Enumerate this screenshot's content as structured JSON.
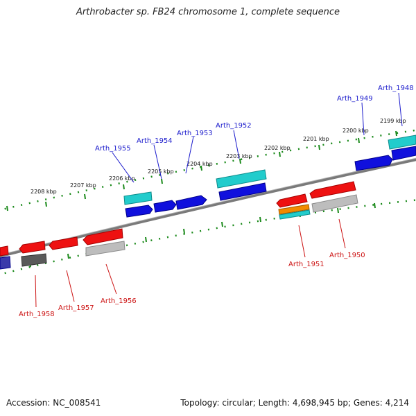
{
  "title": "Arthrobacter sp. FB24 chromosome 1, complete sequence",
  "accession": "Accession: NC_008541",
  "topology": "Topology: circular; Length: 4,698,945 bp; Genes: 4,214",
  "kbp_ticks": [
    "2199 kbp",
    "2200 kbp",
    "2201 kbp",
    "2202 kbp",
    "2203 kbp",
    "2204 kbp",
    "2205 kbp",
    "2206 kbp",
    "2207 kbp",
    "2208 kbp"
  ],
  "forward_labels": [
    "Arth_1948",
    "Arth_1949",
    "Arth_1952",
    "Arth_1953",
    "Arth_1954",
    "Arth_1955"
  ],
  "reverse_labels": [
    "Arth_1950",
    "Arth_1951",
    "Arth_1956",
    "Arth_1957",
    "Arth_1958"
  ],
  "colors": {
    "forward_label": "#1a1acc",
    "reverse_label": "#cc1111",
    "ruler": "#1b8a1b",
    "backbone": "#808080"
  }
}
